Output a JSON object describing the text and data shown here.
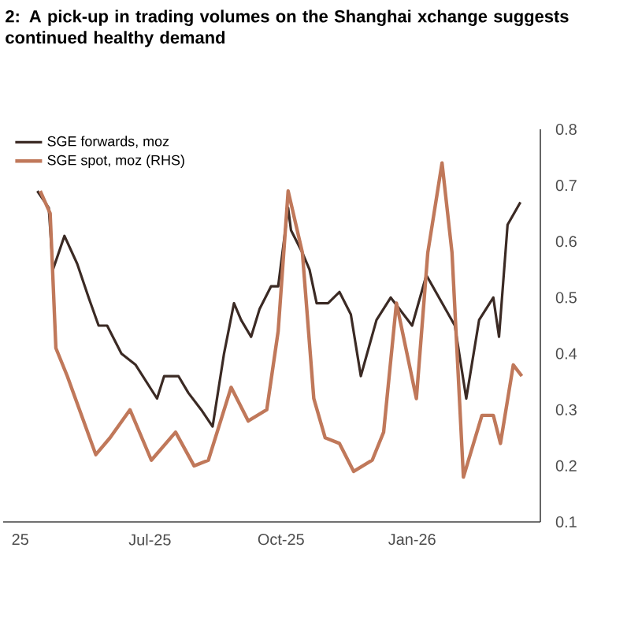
{
  "chart_data": {
    "type": "line",
    "title": "2: A pick-up in trading volumes on the Shanghai xchange suggests continued healthy demand",
    "xlim": [
      "2025-03-20",
      "2026-04-01"
    ],
    "xticks": [
      {
        "value": "2025-04-01",
        "label": "25"
      },
      {
        "value": "2025-07-01",
        "label": "Jul-25"
      },
      {
        "value": "2025-10-01",
        "label": "Oct-25"
      },
      {
        "value": "2026-01-01",
        "label": "Jan-26"
      }
    ],
    "ylim": [
      0.1,
      0.8
    ],
    "yticks": [
      0.1,
      0.2,
      0.3,
      0.4,
      0.5,
      0.6,
      0.7,
      0.8
    ],
    "legend": "top left",
    "grid": false,
    "marker": "none",
    "line_style": "solid",
    "series": [
      {
        "name": "SGE forwards, moz",
        "color": "#3b2a24",
        "x": [
          "2025-04-13",
          "2025-04-21",
          "2025-04-24",
          "2025-05-02",
          "2025-05-11",
          "2025-05-19",
          "2025-05-26",
          "2025-06-01",
          "2025-06-11",
          "2025-06-21",
          "2025-07-06",
          "2025-07-11",
          "2025-07-21",
          "2025-07-28",
          "2025-08-06",
          "2025-08-14",
          "2025-08-22",
          "2025-08-29",
          "2025-09-03",
          "2025-09-10",
          "2025-09-16",
          "2025-09-24",
          "2025-09-29",
          "2025-10-06",
          "2025-10-08",
          "2025-10-16",
          "2025-10-21",
          "2025-10-26",
          "2025-11-03",
          "2025-11-11",
          "2025-11-19",
          "2025-11-26",
          "2025-12-07",
          "2025-12-17",
          "2026-01-01",
          "2026-01-11",
          "2026-01-31",
          "2026-02-08",
          "2026-02-17",
          "2026-02-27",
          "2026-03-03",
          "2026-03-09",
          "2026-03-18"
        ],
        "values": [
          0.69,
          0.66,
          0.55,
          0.61,
          0.56,
          0.5,
          0.45,
          0.45,
          0.4,
          0.38,
          0.32,
          0.36,
          0.36,
          0.33,
          0.3,
          0.27,
          0.4,
          0.49,
          0.46,
          0.43,
          0.48,
          0.52,
          0.52,
          0.66,
          0.62,
          0.58,
          0.55,
          0.49,
          0.49,
          0.51,
          0.47,
          0.36,
          0.46,
          0.5,
          0.45,
          0.54,
          0.45,
          0.32,
          0.46,
          0.5,
          0.43,
          0.63,
          0.67
        ]
      },
      {
        "name": "SGE spot, moz (RHS)",
        "color": "#c0785a",
        "x": [
          "2025-04-15",
          "2025-04-22",
          "2025-04-26",
          "2025-05-04",
          "2025-05-14",
          "2025-05-24",
          "2025-06-03",
          "2025-06-17",
          "2025-07-02",
          "2025-07-19",
          "2025-08-01",
          "2025-08-11",
          "2025-08-27",
          "2025-09-08",
          "2025-09-21",
          "2025-09-29",
          "2025-10-06",
          "2025-10-16",
          "2025-10-24",
          "2025-11-01",
          "2025-11-11",
          "2025-11-21",
          "2025-12-04",
          "2025-12-12",
          "2025-12-21",
          "2026-01-04",
          "2026-01-12",
          "2026-01-22",
          "2026-01-29",
          "2026-02-06",
          "2026-02-19",
          "2026-02-27",
          "2026-03-04",
          "2026-03-13",
          "2026-03-19"
        ],
        "values": [
          0.69,
          0.65,
          0.41,
          0.36,
          0.29,
          0.22,
          0.25,
          0.3,
          0.21,
          0.26,
          0.2,
          0.21,
          0.34,
          0.28,
          0.3,
          0.44,
          0.69,
          0.58,
          0.32,
          0.25,
          0.24,
          0.19,
          0.21,
          0.26,
          0.49,
          0.32,
          0.58,
          0.74,
          0.58,
          0.18,
          0.29,
          0.29,
          0.24,
          0.38,
          0.36
        ]
      }
    ]
  }
}
